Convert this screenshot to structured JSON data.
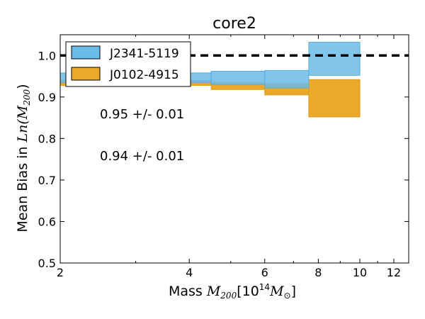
{
  "chart_data": {
    "type": "area",
    "title": "core2",
    "xlabel": {
      "prefix": "Mass ",
      "math": "M",
      "sub": "200",
      "bracket_open": "[10",
      "sup": "14",
      "unit": "M",
      "unit_sub": "⊙",
      "bracket_close": "]"
    },
    "ylabel": {
      "prefix": "Mean Bias in ",
      "math": "Ln",
      "paren_open": "(M",
      "sub": "200",
      "paren_close": ")"
    },
    "xscale": "log",
    "xlim": [
      2,
      13
    ],
    "ylim": [
      0.5,
      1.05
    ],
    "xticks": [
      2,
      4,
      6,
      8,
      10,
      12
    ],
    "xtick_labels": [
      "2",
      "4",
      "6",
      "8",
      "10",
      "12"
    ],
    "yticks": [
      0.5,
      0.6,
      0.7,
      0.8,
      0.9,
      1.0
    ],
    "ytick_labels": [
      "0.5",
      "0.6",
      "0.7",
      "0.8",
      "0.9",
      "1.0"
    ],
    "reference_line": {
      "y": 1.0,
      "style": "dashed",
      "color": "#000000"
    },
    "legend_placement": "top-left",
    "series": [
      {
        "name": "J2341-5119",
        "color": "#6bbbe8",
        "edge": "#58aee0",
        "bins": [
          {
            "x0": 2.0,
            "x1": 4.5,
            "low": 0.935,
            "high": 0.958
          },
          {
            "x0": 4.5,
            "x1": 6.0,
            "low": 0.93,
            "high": 0.962
          },
          {
            "x0": 6.0,
            "x1": 7.6,
            "low": 0.922,
            "high": 0.964
          },
          {
            "x0": 7.6,
            "x1": 10.0,
            "low": 0.952,
            "high": 1.032
          }
        ],
        "annotation": "0.95 +/- 0.01"
      },
      {
        "name": "J0102-4915",
        "color": "#eaa92a",
        "edge": "#d99a20",
        "bins": [
          {
            "x0": 2.0,
            "x1": 4.5,
            "low": 0.928,
            "high": 0.94
          },
          {
            "x0": 4.5,
            "x1": 6.0,
            "low": 0.918,
            "high": 0.935
          },
          {
            "x0": 6.0,
            "x1": 7.6,
            "low": 0.905,
            "high": 0.932
          },
          {
            "x0": 7.6,
            "x1": 10.0,
            "low": 0.852,
            "high": 0.942
          }
        ],
        "annotation": "0.94 +/- 0.01"
      }
    ]
  }
}
